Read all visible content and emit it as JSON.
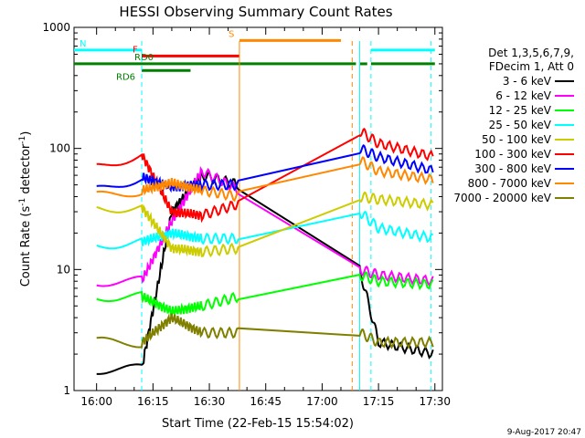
{
  "chart_data": {
    "type": "line",
    "title": "HESSI Observing Summary Count Rates",
    "xlabel": "Start Time (22-Feb-15 15:54:02)",
    "ylabel_main": "Count Rate (s",
    "ylabel_sup1": "-1",
    "ylabel_mid": " detector",
    "ylabel_sup2": "-1",
    "ylabel_end": ")",
    "yscale": "log",
    "ylim": [
      1,
      1000
    ],
    "xlim_minutes_after_1554": [
      0,
      98
    ],
    "x_tick_labels": [
      "16:00",
      "16:15",
      "16:30",
      "16:45",
      "17:00",
      "17:15",
      "17:30"
    ],
    "y_tick_labels": [
      "1",
      "10",
      "100",
      "1000"
    ],
    "date_stamp": "9-Aug-2017 20:47",
    "legend": {
      "header1": "Det 1,3,5,6,7,9,",
      "header2": "FDecim 1, Att 0",
      "position": "right"
    },
    "series": [
      {
        "name": "3 - 6 keV",
        "color": "#000000",
        "x": [
          "16:00",
          "16:12",
          "16:20",
          "16:28",
          "16:38",
          "17:10",
          "17:15",
          "17:30"
        ],
        "values": [
          1.5,
          1.5,
          30,
          60,
          50,
          10,
          2.5,
          2
        ]
      },
      {
        "name": "6 - 12 keV",
        "color": "#ff00ff",
        "x": [
          "16:00",
          "16:12",
          "16:20",
          "16:28",
          "16:38",
          "17:10",
          "17:15",
          "17:30"
        ],
        "values": [
          8,
          8,
          25,
          65,
          45,
          10,
          9,
          8
        ]
      },
      {
        "name": "12 - 25 keV",
        "color": "#00ff00",
        "x": [
          "16:00",
          "16:12",
          "16:20",
          "16:28",
          "16:38",
          "17:10",
          "17:15",
          "17:30"
        ],
        "values": [
          6,
          6,
          4.5,
          5,
          6,
          9,
          8,
          7.5
        ]
      },
      {
        "name": "25 - 50 keV",
        "color": "#00ffff",
        "x": [
          "16:00",
          "16:12",
          "16:20",
          "16:28",
          "16:38",
          "17:10",
          "17:15",
          "17:30"
        ],
        "values": [
          16,
          17,
          20,
          18,
          18,
          30,
          22,
          18
        ]
      },
      {
        "name": "50 - 100 keV",
        "color": "#cccc00",
        "x": [
          "16:00",
          "16:12",
          "16:20",
          "16:28",
          "16:38",
          "17:10",
          "17:15",
          "17:30"
        ],
        "values": [
          32,
          33,
          15,
          14,
          15,
          40,
          38,
          34
        ]
      },
      {
        "name": "100 - 300 keV",
        "color": "#ff0000",
        "x": [
          "16:00",
          "16:12",
          "16:20",
          "16:28",
          "16:38",
          "17:10",
          "17:15",
          "17:30"
        ],
        "values": [
          70,
          90,
          30,
          28,
          35,
          140,
          110,
          85
        ]
      },
      {
        "name": "300 - 800 keV",
        "color": "#0000ff",
        "x": [
          "16:00",
          "16:12",
          "16:20",
          "16:28",
          "16:38",
          "17:10",
          "17:15",
          "17:30"
        ],
        "values": [
          45,
          58,
          48,
          50,
          50,
          100,
          85,
          65
        ]
      },
      {
        "name": "800 - 7000 keV",
        "color": "#ff8800",
        "x": [
          "16:00",
          "16:12",
          "16:20",
          "16:28",
          "16:38",
          "17:10",
          "17:15",
          "17:30"
        ],
        "values": [
          40,
          45,
          52,
          45,
          40,
          80,
          65,
          55
        ]
      },
      {
        "name": "7000 - 20000 keV",
        "color": "#808000",
        "x": [
          "16:00",
          "16:12",
          "16:20",
          "16:28",
          "16:38",
          "17:10",
          "17:15",
          "17:30"
        ],
        "values": [
          2.5,
          2.5,
          4,
          3,
          3,
          3,
          2.5,
          2.5
        ]
      }
    ],
    "flag_bars": [
      {
        "label": "N",
        "color": "#00ffff",
        "level": 650,
        "segments": [
          [
            "15:54",
            "16:12"
          ],
          [
            "17:13",
            "17:30"
          ]
        ]
      },
      {
        "label": "S",
        "color": "#ff8800",
        "level": 780,
        "segments": [
          [
            "16:38",
            "17:05"
          ]
        ]
      },
      {
        "label": "F",
        "color": "#ff0000",
        "level": 580,
        "segments": [
          [
            "16:12",
            "16:38"
          ]
        ]
      },
      {
        "label": "RD0",
        "color": "#008000",
        "level": 500,
        "segments": [
          [
            "15:54",
            "17:09"
          ],
          [
            "17:10",
            "17:12"
          ],
          [
            "17:13",
            "17:30"
          ]
        ]
      },
      {
        "label": "RD6",
        "color": "#008000",
        "level": 440,
        "segments": [
          [
            "16:12",
            "16:25"
          ]
        ]
      }
    ]
  }
}
